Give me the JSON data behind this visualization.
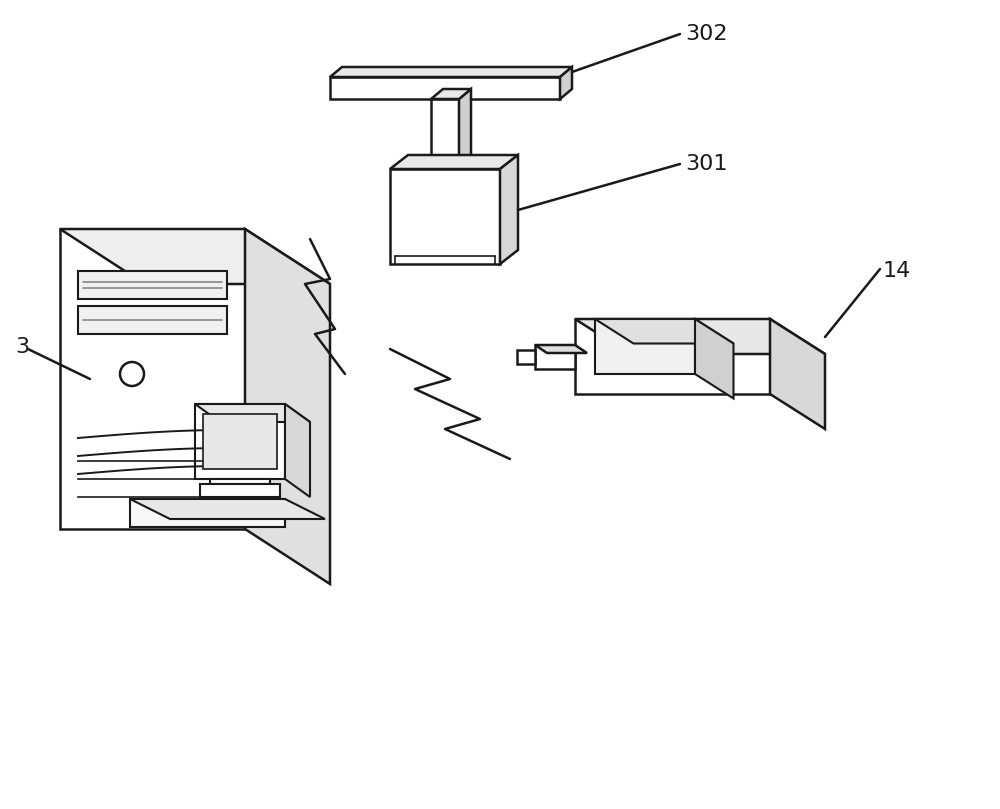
{
  "bg_color": "#ffffff",
  "line_color": "#1a1a1a",
  "label_302": "302",
  "label_301": "301",
  "label_3": "3",
  "label_14": "14",
  "figsize": [
    10.0,
    8.09
  ],
  "dpi": 100
}
